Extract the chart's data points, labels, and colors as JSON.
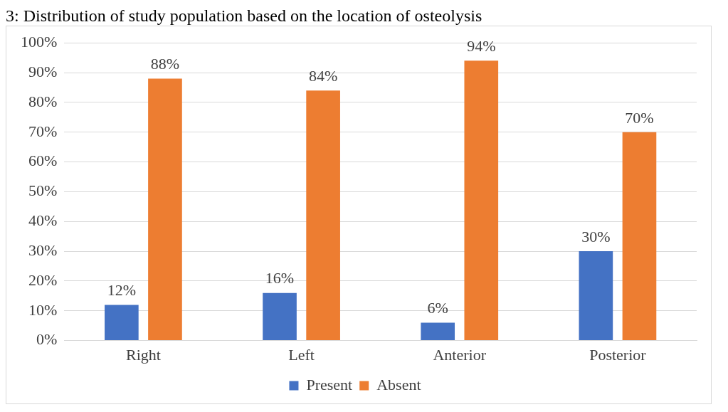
{
  "chart_data": {
    "type": "bar",
    "title": "3: Distribution of study population based on the location of osteolysis",
    "categories": [
      "Right",
      "Left",
      "Anterior",
      "Posterior"
    ],
    "series": [
      {
        "name": "Present",
        "color": "#4472c4",
        "values": [
          12,
          16,
          6,
          30
        ]
      },
      {
        "name": "Absent",
        "color": "#ed7d31",
        "values": [
          88,
          84,
          94,
          70
        ]
      }
    ],
    "ylim": [
      0,
      100
    ],
    "yticks": [
      {
        "value": 0,
        "label": "0%"
      },
      {
        "value": 10,
        "label": "10%"
      },
      {
        "value": 20,
        "label": "20%"
      },
      {
        "value": 30,
        "label": "30%"
      },
      {
        "value": 40,
        "label": "40%"
      },
      {
        "value": 50,
        "label": "50%"
      },
      {
        "value": 60,
        "label": "60%"
      },
      {
        "value": 70,
        "label": "70%"
      },
      {
        "value": 80,
        "label": "80%"
      },
      {
        "value": 90,
        "label": "90%"
      },
      {
        "value": 100,
        "label": "100%"
      }
    ],
    "value_labels": [
      [
        "12%",
        "16%",
        "6%",
        "30%"
      ],
      [
        "88%",
        "84%",
        "94%",
        "70%"
      ]
    ],
    "grid": "y",
    "legend": "bottom"
  }
}
